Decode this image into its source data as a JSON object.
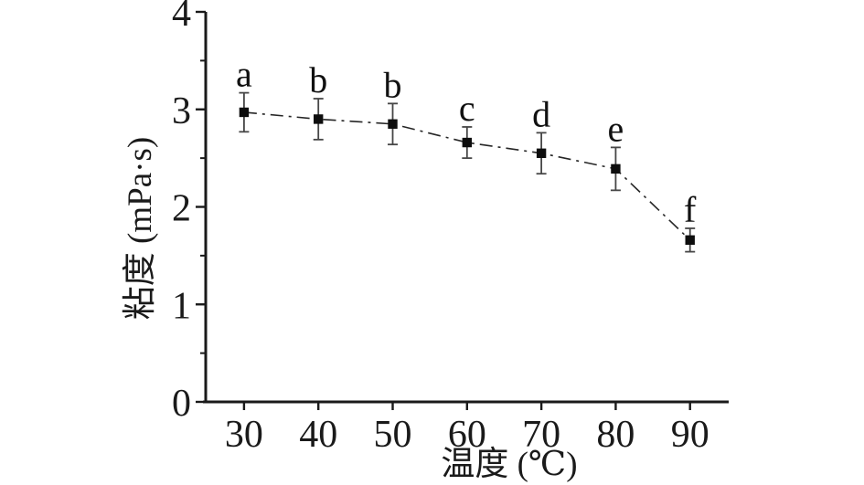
{
  "chart_data": {
    "type": "line",
    "xlabel": "温度 (℃)",
    "ylabel": "粘度 (mPa·s)",
    "x": [
      30,
      40,
      50,
      60,
      70,
      80,
      90
    ],
    "series": [
      {
        "name": "viscosity",
        "values": [
          2.97,
          2.9,
          2.85,
          2.66,
          2.55,
          2.39,
          1.66
        ],
        "errors": [
          0.2,
          0.21,
          0.21,
          0.16,
          0.21,
          0.22,
          0.12
        ],
        "point_labels": [
          "a",
          "b",
          "b",
          "c",
          "d",
          "e",
          "f"
        ],
        "marker": "filled-square",
        "line_style": "dash-dot"
      }
    ],
    "xlim": [
      24.6,
      95.2
    ],
    "ylim": [
      0,
      4
    ],
    "x_ticks": [
      30,
      40,
      50,
      60,
      70,
      80,
      90
    ],
    "y_ticks": [
      0,
      1,
      2,
      3,
      4
    ],
    "y_minor_ticks": [
      0.5,
      1.5,
      2.5,
      3.5
    ],
    "grid": false,
    "legend_position": "none",
    "colors": {
      "axis": "#1a1a1a",
      "line": "#262626",
      "marker": "#0d0d0d",
      "error_bar": "#474747",
      "text": "#1a1a1a",
      "background": "#ffffff"
    }
  }
}
